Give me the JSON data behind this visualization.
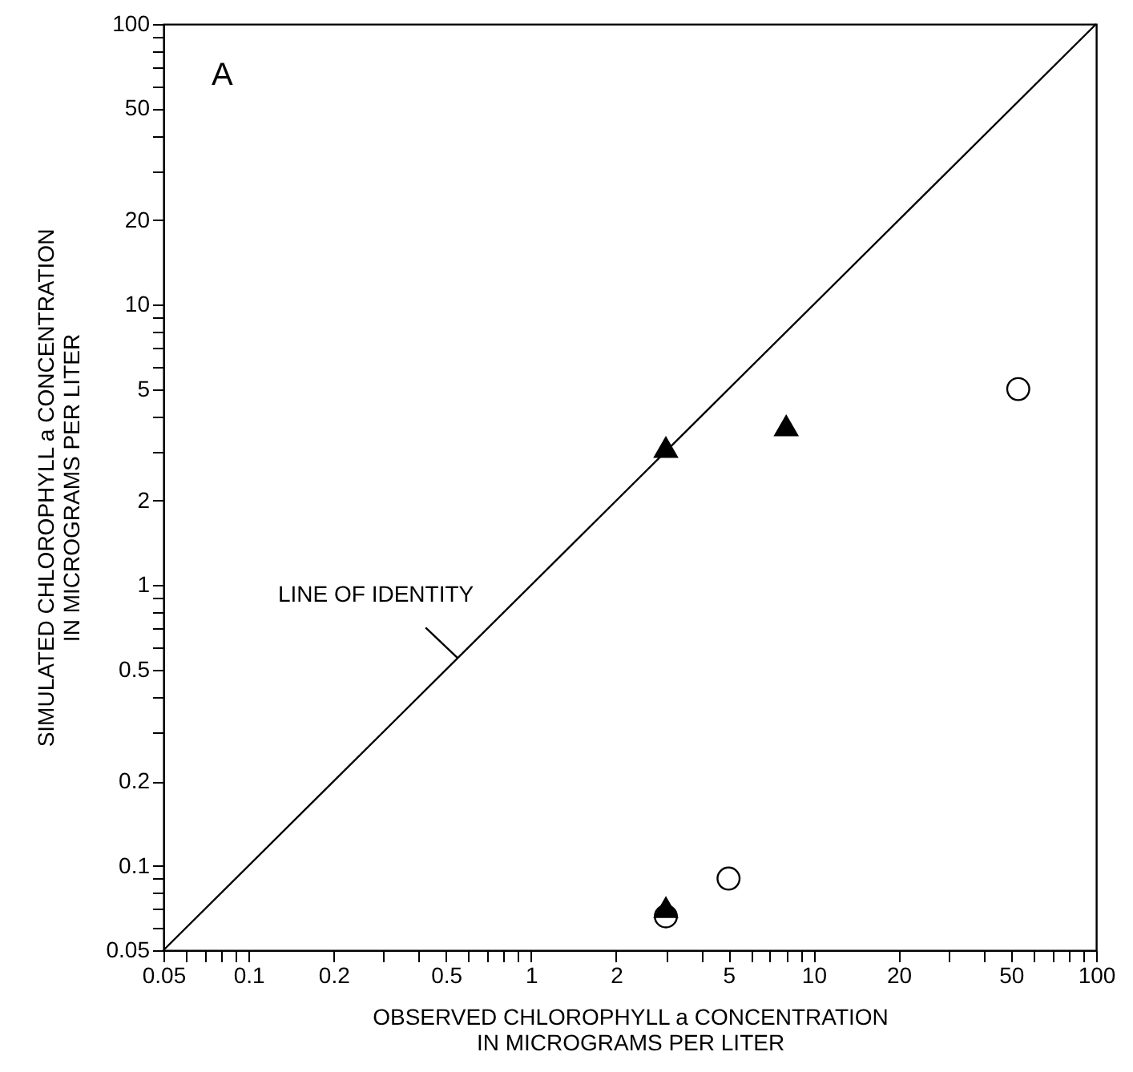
{
  "chart_data": {
    "type": "scatter",
    "xlabel": "OBSERVED CHLOROPHYLL a CONCENTRATION\nIN MICROGRAMS PER LITER",
    "ylabel": "SIMULATED CHLOROPHYLL a CONCENTRATION\nIN MICROGRAMS PER LITER",
    "log": "xy",
    "grid": false,
    "xlim": [
      0.05,
      100
    ],
    "ylim": [
      0.05,
      100
    ],
    "xticks": [
      0.05,
      {
        "value": 0.06,
        "label": null
      },
      {
        "value": 0.07,
        "label": null
      },
      {
        "value": 0.08,
        "label": null
      },
      {
        "value": 0.09,
        "label": null
      },
      0.1,
      0.2,
      {
        "value": 0.3,
        "label": null
      },
      {
        "value": 0.4,
        "label": null
      },
      0.5,
      {
        "value": 0.6,
        "label": null
      },
      {
        "value": 0.7,
        "label": null
      },
      {
        "value": 0.8,
        "label": null
      },
      {
        "value": 0.9,
        "label": null
      },
      1,
      2,
      {
        "value": 3,
        "label": null
      },
      {
        "value": 4,
        "label": null
      },
      5,
      {
        "value": 6,
        "label": null
      },
      {
        "value": 7,
        "label": null
      },
      {
        "value": 8,
        "label": null
      },
      {
        "value": 9,
        "label": null
      },
      10,
      20,
      {
        "value": 30,
        "label": null
      },
      {
        "value": 40,
        "label": null
      },
      50,
      {
        "value": 60,
        "label": null
      },
      {
        "value": 70,
        "label": null
      },
      {
        "value": 80,
        "label": null
      },
      {
        "value": 90,
        "label": null
      },
      100
    ],
    "yticks": [
      0.05,
      {
        "value": 0.06,
        "label": null
      },
      {
        "value": 0.07,
        "label": null
      },
      {
        "value": 0.08,
        "label": null
      },
      {
        "value": 0.09,
        "label": null
      },
      0.1,
      0.2,
      {
        "value": 0.3,
        "label": null
      },
      {
        "value": 0.4,
        "label": null
      },
      0.5,
      {
        "value": 0.6,
        "label": null
      },
      {
        "value": 0.7,
        "label": null
      },
      {
        "value": 0.8,
        "label": null
      },
      {
        "value": 0.9,
        "label": null
      },
      1,
      2,
      {
        "value": 3,
        "label": null
      },
      {
        "value": 4,
        "label": null
      },
      5,
      {
        "value": 6,
        "label": null
      },
      {
        "value": 7,
        "label": null
      },
      {
        "value": 8,
        "label": null
      },
      {
        "value": 9,
        "label": null
      },
      10,
      20,
      {
        "value": 30,
        "label": null
      },
      {
        "value": 40,
        "label": null
      },
      50,
      {
        "value": 60,
        "label": null
      },
      {
        "value": 70,
        "label": null
      },
      {
        "value": 80,
        "label": null
      },
      {
        "value": 90,
        "label": null
      },
      100
    ],
    "series": [
      {
        "type": "line",
        "color": "#000000",
        "marker": "none",
        "line_style": "solid",
        "x": [
          0.05,
          100
        ],
        "values": [
          0.05,
          100
        ]
      },
      {
        "color": "#000000",
        "marker": "circle",
        "x": [
          3,
          5,
          53
        ],
        "values": [
          0.066,
          0.09,
          5
        ]
      },
      {
        "color": "#000000",
        "marker": "triangle",
        "x": [
          3,
          8,
          3
        ],
        "values": [
          3.1,
          3.7,
          0.071
        ]
      }
    ],
    "annotations": [
      "A",
      {
        "text": "LINE OF IDENTITY",
        "x": 0.55,
        "y": 0.55
      }
    ]
  }
}
